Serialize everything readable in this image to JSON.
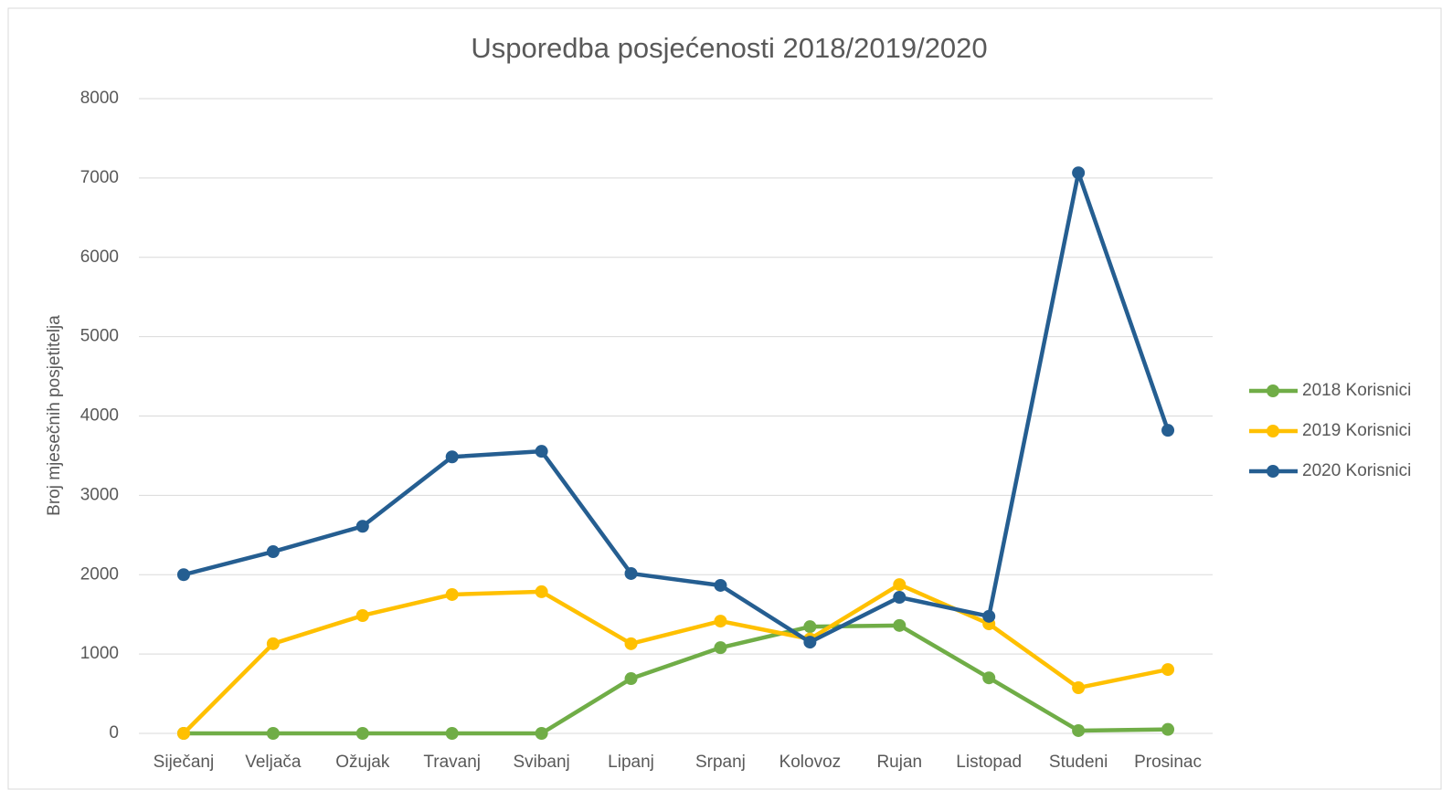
{
  "chart_data": {
    "type": "line",
    "title": "Usporedba posjećenosti 2018/2019/2020",
    "y_label": "Broj mjesečnih posjetitelja",
    "categories": [
      "Siječanj",
      "Veljača",
      "Ožujak",
      "Travanj",
      "Svibanj",
      "Lipanj",
      "Srpanj",
      "Kolovoz",
      "Rujan",
      "Listopad",
      "Studeni",
      "Prosinac"
    ],
    "series": [
      {
        "name": "2018 Korisnici",
        "color": "#70ad47",
        "values": [
          0,
          0,
          0,
          0,
          0,
          690,
          1080,
          1345,
          1360,
          700,
          35,
          50
        ]
      },
      {
        "name": "2019 Korisnici",
        "color": "#ffc000",
        "values": [
          0,
          1130,
          1485,
          1750,
          1785,
          1130,
          1415,
          1190,
          1875,
          1380,
          575,
          805
        ]
      },
      {
        "name": "2020 Korisnici",
        "color": "#255e91",
        "values": [
          2000,
          2290,
          2610,
          3485,
          3555,
          2015,
          1865,
          1150,
          1715,
          1475,
          7065,
          3820
        ]
      }
    ],
    "ylim": [
      0,
      8000
    ],
    "yticks": [
      0,
      1000,
      2000,
      3000,
      4000,
      5000,
      6000,
      7000,
      8000
    ],
    "grid": true,
    "legend": "right"
  }
}
